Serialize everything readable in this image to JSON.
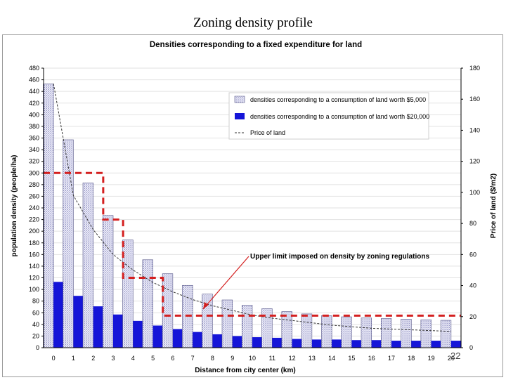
{
  "slide": {
    "title": "Zoning density profile",
    "page_number": "22"
  },
  "chart_data": {
    "type": "bar",
    "title": "Densities corresponding to a fixed expenditure for land",
    "xlabel": "Distance from city center (km)",
    "ylabel": "population density (people/ha)",
    "y2label": "Price of land ($/m2)",
    "categories": [
      "0",
      "1",
      "2",
      "3",
      "4",
      "5",
      "6",
      "7",
      "8",
      "9",
      "10",
      "11",
      "12",
      "13",
      "14",
      "15",
      "16",
      "17",
      "18",
      "19",
      "20"
    ],
    "ylim": [
      0,
      480
    ],
    "yticks": [
      0,
      20,
      40,
      60,
      80,
      100,
      120,
      140,
      160,
      180,
      200,
      220,
      240,
      260,
      280,
      300,
      320,
      340,
      360,
      380,
      400,
      420,
      440,
      460,
      480
    ],
    "y2lim": [
      0,
      180
    ],
    "y2ticks": [
      0,
      20,
      40,
      60,
      80,
      100,
      120,
      140,
      160,
      180
    ],
    "grid": true,
    "legend_position": "top-right",
    "series": [
      {
        "name": "densities corresponding to a consumption of land worth $5,000",
        "kind": "bar",
        "axis": "left",
        "color": "#c8c8e6",
        "values": [
          453,
          357,
          283,
          227,
          185,
          151,
          127,
          107,
          92,
          82,
          73,
          67,
          62,
          58,
          55,
          53,
          51,
          50,
          49,
          48,
          47
        ]
      },
      {
        "name": "densities corresponding to a consumption of land worth $20,000",
        "kind": "bar",
        "axis": "left",
        "color": "#1515d8",
        "values": [
          113,
          89,
          71,
          57,
          46,
          38,
          32,
          27,
          23,
          20,
          18,
          17,
          15,
          14,
          14,
          13,
          13,
          12,
          12,
          12,
          12
        ]
      },
      {
        "name": "Price of land",
        "kind": "line",
        "axis": "right",
        "color": "#333333",
        "values": [
          170,
          98,
          76,
          60,
          50,
          42,
          36,
          31,
          27,
          24,
          21,
          19,
          17.5,
          16,
          14.5,
          13.5,
          12.5,
          12,
          11.5,
          11,
          10.5
        ]
      }
    ],
    "zoning_limit": {
      "label": "Upper limit imposed on density by zoning regulations",
      "color": "#d42020",
      "steps": [
        {
          "from": 0,
          "to": 2,
          "value": 300
        },
        {
          "from": 3,
          "to": 3,
          "value": 220
        },
        {
          "from": 4,
          "to": 5,
          "value": 120
        },
        {
          "from": 6,
          "to": 20,
          "value": 55
        }
      ]
    }
  }
}
